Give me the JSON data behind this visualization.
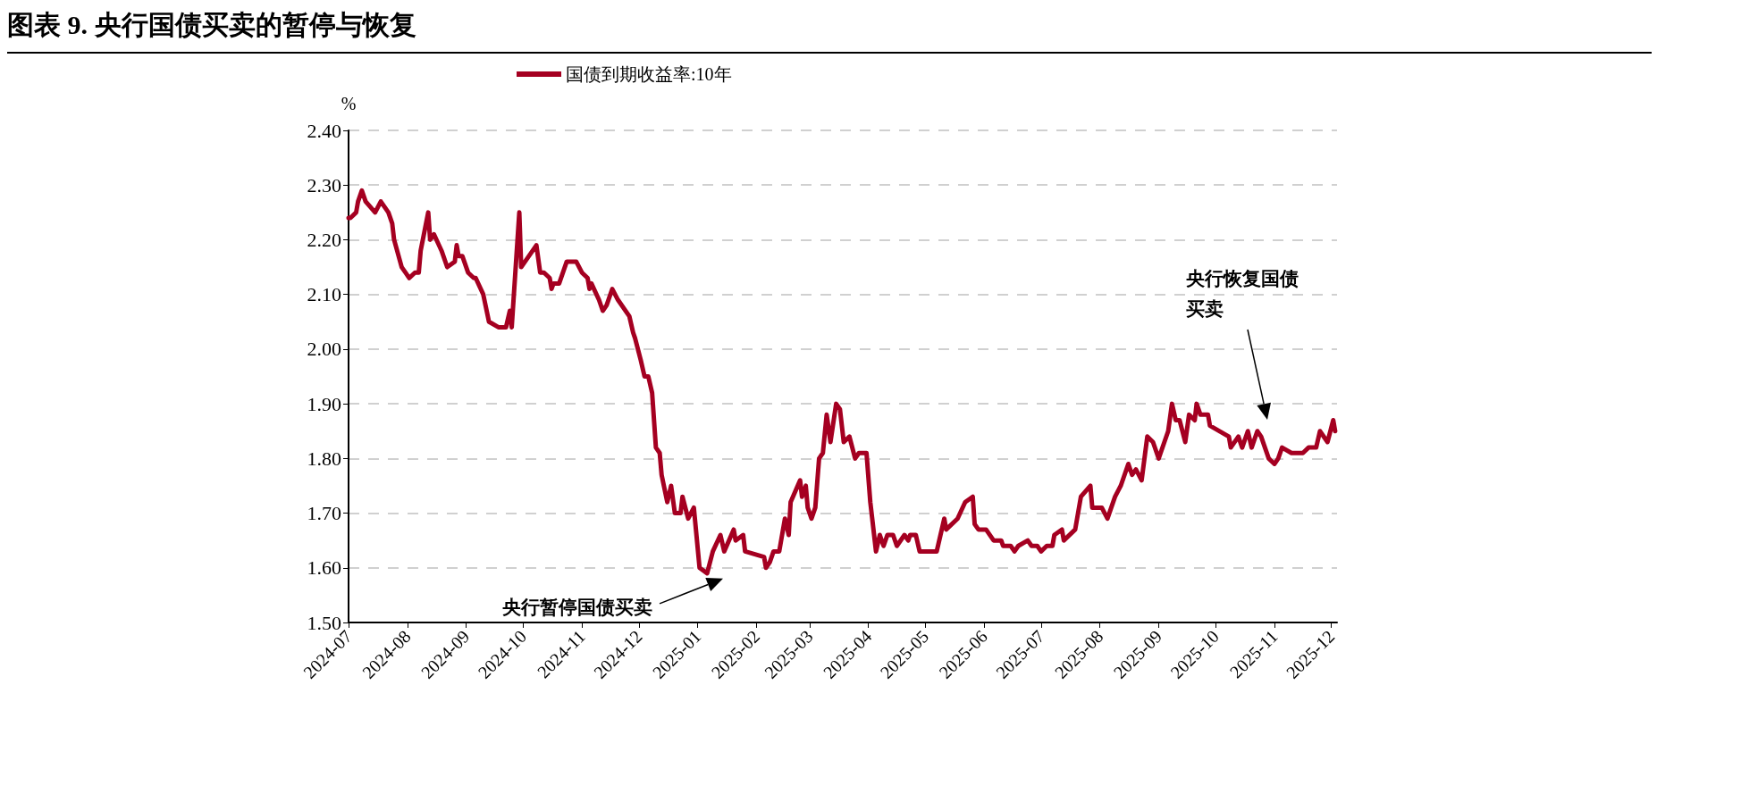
{
  "chart_data": {
    "type": "line",
    "title": "图表 9. 央行国债买卖的暂停与恢复",
    "ylabel": "%",
    "x": [
      "2024-07-01",
      "2024-07-02",
      "2024-07-05",
      "2024-07-06",
      "2024-07-08",
      "2024-07-10",
      "2024-07-15",
      "2024-07-18",
      "2024-07-22",
      "2024-07-24",
      "2024-07-25",
      "2024-07-29",
      "2024-07-31",
      "2024-08-02",
      "2024-08-05",
      "2024-08-07",
      "2024-08-08",
      "2024-08-12",
      "2024-08-13",
      "2024-08-15",
      "2024-08-19",
      "2024-08-22",
      "2024-08-26",
      "2024-08-27",
      "2024-08-28",
      "2024-08-30",
      "2024-09-02",
      "2024-09-05",
      "2024-09-06",
      "2024-09-10",
      "2024-09-13",
      "2024-09-18",
      "2024-09-22",
      "2024-09-24",
      "2024-09-25",
      "2024-09-29",
      "2024-09-30",
      "2024-10-08",
      "2024-10-10",
      "2024-10-12",
      "2024-10-15",
      "2024-10-16",
      "2024-10-17",
      "2024-10-20",
      "2024-10-24",
      "2024-10-25",
      "2024-10-29",
      "2024-11-01",
      "2024-11-04",
      "2024-11-05",
      "2024-11-06",
      "2024-11-10",
      "2024-11-12",
      "2024-11-14",
      "2024-11-17",
      "2024-11-20",
      "2024-11-26",
      "2024-11-28",
      "2024-11-29",
      "2024-12-02",
      "2024-12-04",
      "2024-12-06",
      "2024-12-08",
      "2024-12-10",
      "2024-12-12",
      "2024-12-13",
      "2024-12-16",
      "2024-12-18",
      "2024-12-20",
      "2024-12-23",
      "2024-12-24",
      "2024-12-27",
      "2024-12-30",
      "2025-01-02",
      "2025-01-06",
      "2025-01-09",
      "2025-01-13",
      "2025-01-15",
      "2025-01-20",
      "2025-01-21",
      "2025-01-25",
      "2025-01-26",
      "2025-02-05",
      "2025-02-06",
      "2025-02-08",
      "2025-02-10",
      "2025-02-13",
      "2025-02-16",
      "2025-02-18",
      "2025-02-19",
      "2025-02-24",
      "2025-02-25",
      "2025-02-27",
      "2025-02-28",
      "2025-03-02",
      "2025-03-04",
      "2025-03-06",
      "2025-03-08",
      "2025-03-10",
      "2025-03-12",
      "2025-03-15",
      "2025-03-17",
      "2025-03-19",
      "2025-03-22",
      "2025-03-25",
      "2025-03-27",
      "2025-03-31",
      "2025-04-02",
      "2025-04-05",
      "2025-04-07",
      "2025-04-09",
      "2025-04-11",
      "2025-04-14",
      "2025-04-16",
      "2025-04-20",
      "2025-04-22",
      "2025-04-23",
      "2025-04-26",
      "2025-04-28",
      "2025-05-05",
      "2025-05-07",
      "2025-05-11",
      "2025-05-12",
      "2025-05-18",
      "2025-05-22",
      "2025-05-26",
      "2025-05-27",
      "2025-05-29",
      "2025-06-02",
      "2025-06-06",
      "2025-06-10",
      "2025-06-11",
      "2025-06-15",
      "2025-06-17",
      "2025-06-19",
      "2025-06-24",
      "2025-06-26",
      "2025-06-29",
      "2025-07-01",
      "2025-07-04",
      "2025-07-07",
      "2025-07-08",
      "2025-07-12",
      "2025-07-13",
      "2025-07-19",
      "2025-07-22",
      "2025-07-27",
      "2025-07-28",
      "2025-07-29",
      "2025-08-02",
      "2025-08-05",
      "2025-08-09",
      "2025-08-12",
      "2025-08-16",
      "2025-08-18",
      "2025-08-20",
      "2025-08-23",
      "2025-08-26",
      "2025-08-29",
      "2025-09-01",
      "2025-09-04",
      "2025-09-06",
      "2025-09-08",
      "2025-09-10",
      "2025-09-12",
      "2025-09-15",
      "2025-09-17",
      "2025-09-20",
      "2025-09-21",
      "2025-09-23",
      "2025-09-27",
      "2025-09-28",
      "2025-10-08",
      "2025-10-09",
      "2025-10-13",
      "2025-10-15",
      "2025-10-18",
      "2025-10-20",
      "2025-10-23",
      "2025-10-25",
      "2025-10-27",
      "2025-10-29",
      "2025-11-01",
      "2025-11-03",
      "2025-11-05",
      "2025-11-10",
      "2025-11-12",
      "2025-11-16",
      "2025-11-19",
      "2025-11-23",
      "2025-11-25",
      "2025-11-29",
      "2025-12-02",
      "2025-12-03"
    ],
    "series": [
      {
        "name": "国债到期收益率:10年",
        "color": "#a50021",
        "values": [
          2.24,
          2.24,
          2.25,
          2.27,
          2.29,
          2.27,
          2.25,
          2.27,
          2.25,
          2.23,
          2.2,
          2.15,
          2.14,
          2.13,
          2.14,
          2.14,
          2.18,
          2.25,
          2.2,
          2.21,
          2.18,
          2.15,
          2.16,
          2.19,
          2.17,
          2.17,
          2.14,
          2.13,
          2.13,
          2.1,
          2.05,
          2.04,
          2.04,
          2.07,
          2.04,
          2.25,
          2.15,
          2.19,
          2.14,
          2.14,
          2.13,
          2.11,
          2.12,
          2.12,
          2.16,
          2.16,
          2.16,
          2.14,
          2.13,
          2.11,
          2.12,
          2.09,
          2.07,
          2.08,
          2.11,
          2.09,
          2.06,
          2.03,
          2.02,
          1.98,
          1.95,
          1.95,
          1.92,
          1.82,
          1.81,
          1.77,
          1.72,
          1.75,
          1.7,
          1.7,
          1.73,
          1.69,
          1.71,
          1.6,
          1.59,
          1.63,
          1.66,
          1.63,
          1.67,
          1.65,
          1.66,
          1.63,
          1.62,
          1.6,
          1.61,
          1.63,
          1.63,
          1.69,
          1.66,
          1.72,
          1.76,
          1.73,
          1.75,
          1.71,
          1.69,
          1.71,
          1.8,
          1.81,
          1.88,
          1.83,
          1.9,
          1.89,
          1.83,
          1.84,
          1.8,
          1.81,
          1.81,
          1.72,
          1.63,
          1.66,
          1.64,
          1.66,
          1.66,
          1.64,
          1.66,
          1.65,
          1.66,
          1.66,
          1.63,
          1.63,
          1.63,
          1.69,
          1.67,
          1.69,
          1.72,
          1.73,
          1.68,
          1.67,
          1.67,
          1.65,
          1.65,
          1.64,
          1.64,
          1.63,
          1.64,
          1.65,
          1.64,
          1.64,
          1.63,
          1.64,
          1.64,
          1.66,
          1.67,
          1.65,
          1.67,
          1.73,
          1.75,
          1.71,
          1.71,
          1.71,
          1.69,
          1.73,
          1.75,
          1.79,
          1.77,
          1.78,
          1.76,
          1.84,
          1.83,
          1.8,
          1.83,
          1.85,
          1.9,
          1.87,
          1.87,
          1.83,
          1.88,
          1.87,
          1.9,
          1.88,
          1.88,
          1.86,
          1.84,
          1.82,
          1.84,
          1.82,
          1.85,
          1.82,
          1.85,
          1.84,
          1.82,
          1.8,
          1.79,
          1.8,
          1.82,
          1.81,
          1.81,
          1.81,
          1.82,
          1.82,
          1.85,
          1.83,
          1.87,
          1.85
        ]
      }
    ],
    "xlim": [
      "2024-07-01",
      "2025-12-04"
    ],
    "xticks": [
      "2024-07",
      "2024-08",
      "2024-09",
      "2024-10",
      "2024-11",
      "2024-12",
      "2025-01",
      "2025-02",
      "2025-03",
      "2025-04",
      "2025-05",
      "2025-06",
      "2025-07",
      "2025-08",
      "2025-09",
      "2025-10",
      "2025-11",
      "2025-12"
    ],
    "ylim": [
      1.5,
      2.4
    ],
    "yticks": [
      {
        "value": 1.5,
        "label": "1.50"
      },
      {
        "value": 1.6,
        "label": "1.60"
      },
      {
        "value": 1.7,
        "label": "1.70"
      },
      {
        "value": 1.8,
        "label": "1.80"
      },
      {
        "value": 1.9,
        "label": "1.90"
      },
      {
        "value": 2.0,
        "label": "2.00"
      },
      {
        "value": 2.1,
        "label": "2.10"
      },
      {
        "value": 2.2,
        "label": "2.20"
      },
      {
        "value": 2.3,
        "label": "2.30"
      },
      {
        "value": 2.4,
        "label": "2.40"
      }
    ],
    "grid": "y",
    "legend": "top",
    "marker": "none",
    "line_style": "solid",
    "annotations": [
      "央行暂停国债买卖",
      "央行恢复国债买卖"
    ]
  }
}
